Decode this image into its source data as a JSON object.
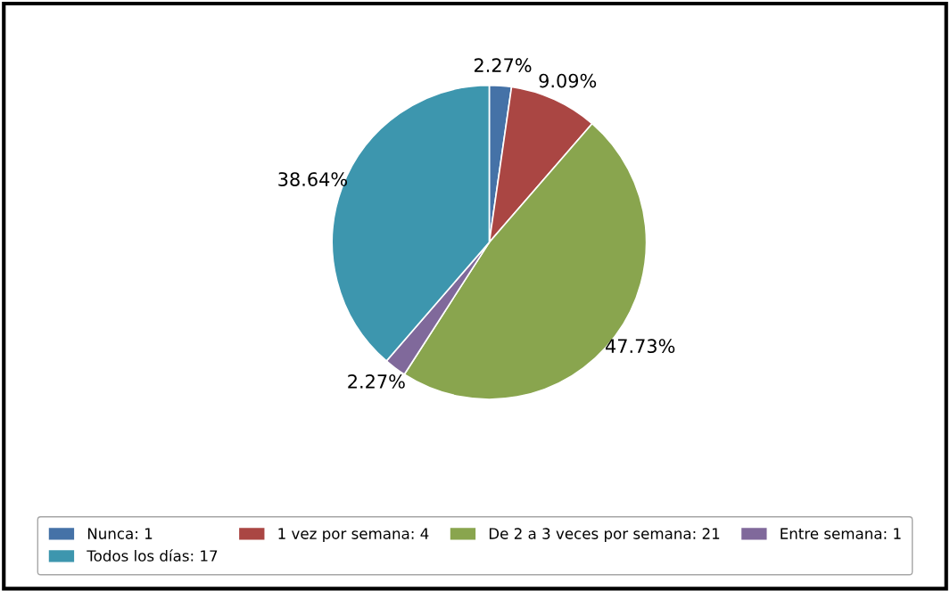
{
  "chart_data": {
    "type": "pie",
    "categories": [
      "Nunca: 1",
      "1 vez por semana: 4",
      "De 2 a 3 veces por semana: 21",
      "Entre semana: 1",
      "Todos los días: 17"
    ],
    "values": [
      2.27,
      9.09,
      47.73,
      2.27,
      38.64
    ],
    "value_labels": [
      "2.27%",
      "9.09%",
      "47.73%",
      "2.27%",
      "38.64%"
    ],
    "colors": [
      "#4572a7",
      "#aa4643",
      "#89a54e",
      "#80699b",
      "#3d96ae"
    ],
    "legend": "bottom"
  }
}
